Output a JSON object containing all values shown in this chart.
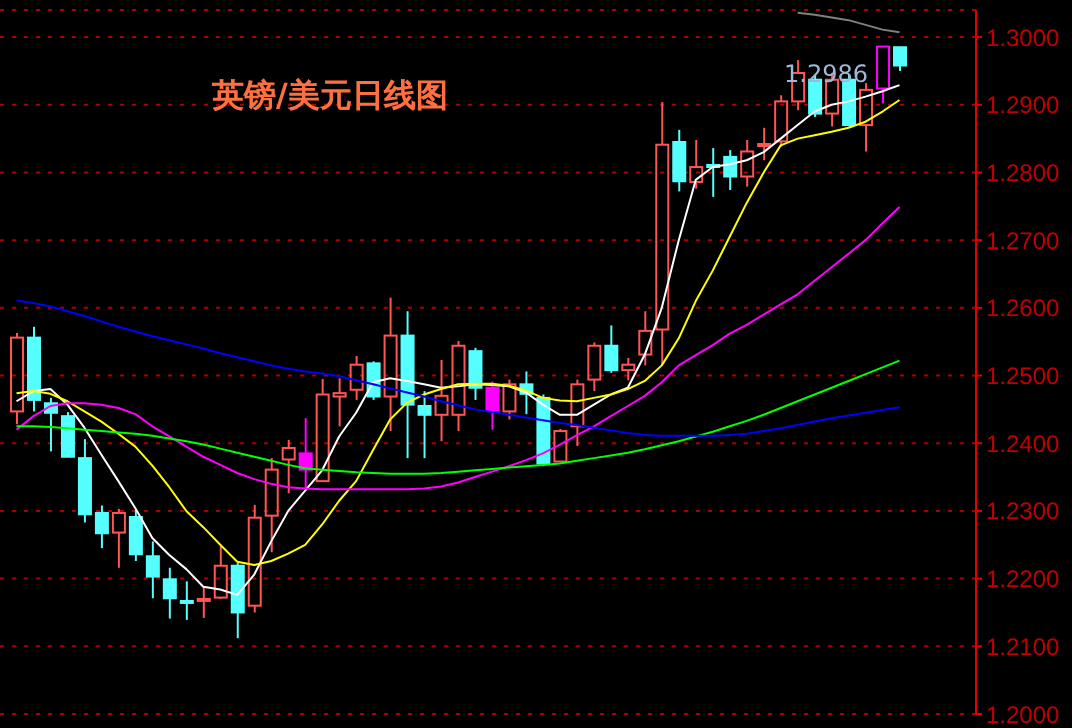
{
  "chart_data": {
    "type": "candlestick",
    "title": "英镑/美元日线图",
    "categories": [
      null,
      null,
      null,
      null,
      null,
      null,
      null,
      null,
      null,
      null,
      null,
      null,
      null,
      null,
      null,
      null,
      null,
      null,
      null,
      null,
      null,
      null,
      null,
      null,
      null,
      null,
      null,
      null,
      null,
      null,
      null,
      null,
      null,
      null,
      null,
      null,
      null,
      null,
      null,
      null,
      null,
      null,
      null,
      null,
      null,
      null,
      null,
      null,
      null,
      null,
      null,
      null,
      null
    ],
    "ohlc": [
      [
        1.2447,
        1.2563,
        1.2428,
        1.2556
      ],
      [
        1.2556,
        1.2572,
        1.2447,
        1.2464
      ],
      [
        1.2459,
        1.2467,
        1.2388,
        1.2445
      ],
      [
        1.244,
        1.2446,
        1.238,
        1.238
      ],
      [
        1.2378,
        1.2406,
        1.2283,
        1.2295
      ],
      [
        1.2297,
        1.2308,
        1.2245,
        1.2267
      ],
      [
        1.2268,
        1.2303,
        1.2216,
        1.2297
      ],
      [
        1.2291,
        1.2303,
        1.2226,
        1.2236
      ],
      [
        1.2233,
        1.2255,
        1.2171,
        1.2203
      ],
      [
        1.2199,
        1.2216,
        1.2141,
        1.2171
      ],
      [
        1.2167,
        1.2196,
        1.2139,
        1.2166
      ],
      [
        1.2168,
        1.2187,
        1.2142,
        1.217
      ],
      [
        1.2172,
        1.225,
        1.217,
        1.2219
      ],
      [
        1.2219,
        1.2223,
        1.2112,
        1.215
      ],
      [
        1.216,
        1.2309,
        1.215,
        1.229
      ],
      [
        1.2293,
        1.2378,
        1.2239,
        1.2361
      ],
      [
        1.2376,
        1.2405,
        1.2326,
        1.2393
      ],
      [
        1.2385,
        1.2437,
        1.2334,
        1.2361
      ],
      [
        1.2344,
        1.2495,
        1.2344,
        1.2472
      ],
      [
        1.2469,
        1.2496,
        1.2425,
        1.2474
      ],
      [
        1.2479,
        1.2529,
        1.2464,
        1.2516
      ],
      [
        1.2518,
        1.2521,
        1.2464,
        1.2469
      ],
      [
        1.2469,
        1.2615,
        1.2418,
        1.2559
      ],
      [
        1.2559,
        1.2595,
        1.2378,
        1.2457
      ],
      [
        1.2455,
        1.2477,
        1.2378,
        1.2442
      ],
      [
        1.2442,
        1.2523,
        1.2403,
        1.247
      ],
      [
        1.2442,
        1.2551,
        1.2418,
        1.2544
      ],
      [
        1.2536,
        1.2541,
        1.2464,
        1.2482
      ],
      [
        1.2482,
        1.2491,
        1.242,
        1.2449
      ],
      [
        1.2447,
        1.2494,
        1.2435,
        1.2487
      ],
      [
        1.2487,
        1.2506,
        1.2443,
        1.2473
      ],
      [
        1.2467,
        1.2472,
        1.2366,
        1.237
      ],
      [
        1.2373,
        1.2421,
        1.2373,
        1.2418
      ],
      [
        1.2425,
        1.2494,
        1.2396,
        1.2487
      ],
      [
        1.2494,
        1.2549,
        1.2477,
        1.2544
      ],
      [
        1.2544,
        1.2574,
        1.2504,
        1.2508
      ],
      [
        1.2508,
        1.2526,
        1.2493,
        1.2516
      ],
      [
        1.2531,
        1.2595,
        1.2515,
        1.2566
      ],
      [
        1.2568,
        1.2904,
        1.2517,
        1.2841
      ],
      [
        1.2845,
        1.2863,
        1.2772,
        1.2787
      ],
      [
        1.2786,
        1.2848,
        1.2776,
        1.2808
      ],
      [
        1.2811,
        1.2836,
        1.2764,
        1.281
      ],
      [
        1.2823,
        1.2833,
        1.2774,
        1.2794
      ],
      [
        1.2794,
        1.2848,
        1.2779,
        1.2831
      ],
      [
        1.284,
        1.2866,
        1.2818,
        1.2842
      ],
      [
        1.2846,
        1.2914,
        1.2838,
        1.2905
      ],
      [
        1.2905,
        1.2966,
        1.2892,
        1.2947
      ],
      [
        1.2937,
        1.2944,
        1.2882,
        1.2887
      ],
      [
        1.2887,
        1.2947,
        1.2868,
        1.2937
      ],
      [
        1.2937,
        1.2944,
        1.2868,
        1.287
      ],
      [
        1.287,
        1.2932,
        1.2831,
        1.2922
      ],
      [
        1.2924,
        1.2986,
        1.2902,
        1.2986
      ],
      [
        1.2985,
        1.2985,
        1.295,
        1.2958
      ]
    ],
    "colors": [
      "#ff5555",
      "#55ffff",
      "#55ffff",
      "#55ffff",
      "#55ffff",
      "#55ffff",
      "#ff5555",
      "#55ffff",
      "#55ffff",
      "#55ffff",
      "#55ffff",
      "#ff5555",
      "#ff5555",
      "#55ffff",
      "#ff5555",
      "#ff5555",
      "#ff5555",
      "#ff00ff",
      "#ff5555",
      "#ff5555",
      "#ff5555",
      "#55ffff",
      "#ff5555",
      "#55ffff",
      "#55ffff",
      "#ff5555",
      "#ff5555",
      "#55ffff",
      "#ff00ff",
      "#ff5555",
      "#55ffff",
      "#55ffff",
      "#ff5555",
      "#ff5555",
      "#ff5555",
      "#55ffff",
      "#ff5555",
      "#ff5555",
      "#ff5555",
      "#55ffff",
      "#ff5555",
      "#55ffff",
      "#55ffff",
      "#ff5555",
      "#ff5555",
      "#ff5555",
      "#ff5555",
      "#55ffff",
      "#ff5555",
      "#55ffff",
      "#ff5555",
      "#ff00ff",
      "#55ffff"
    ],
    "series": [
      {
        "type": "line",
        "color": "#ffffff",
        "values": [
          1.2462,
          1.2477,
          1.248,
          1.2457,
          1.2423,
          1.2383,
          1.2344,
          1.2304,
          1.226,
          1.2235,
          1.2214,
          1.2188,
          1.2184,
          1.2176,
          1.2206,
          1.2255,
          1.23,
          1.233,
          1.236,
          1.241,
          1.2445,
          1.249,
          1.2496,
          1.2492,
          1.2487,
          1.2482,
          1.2484,
          1.2487,
          1.2486,
          1.2484,
          1.2475,
          1.2457,
          1.2442,
          1.2442,
          1.2457,
          1.2472,
          1.2482,
          1.2531,
          1.26,
          1.27,
          1.2789,
          1.2808,
          1.2812,
          1.2818,
          1.283,
          1.285,
          1.287,
          1.289,
          1.29,
          1.2905,
          1.2912,
          1.292,
          1.2929
        ]
      },
      {
        "type": "line",
        "color": "#ffff00",
        "values": [
          1.2474,
          1.2477,
          1.2473,
          1.2462,
          1.2447,
          1.2432,
          1.2414,
          1.2395,
          1.2367,
          1.2335,
          1.23,
          1.2276,
          1.225,
          1.2225,
          1.222,
          1.2226,
          1.2237,
          1.225,
          1.228,
          1.2315,
          1.2344,
          1.239,
          1.2435,
          1.246,
          1.2472,
          1.248,
          1.2487,
          1.2488,
          1.2488,
          1.2485,
          1.2478,
          1.2467,
          1.2463,
          1.2462,
          1.2467,
          1.2472,
          1.248,
          1.2492,
          1.2515,
          1.2555,
          1.261,
          1.2655,
          1.2705,
          1.2755,
          1.28,
          1.284,
          1.285,
          1.2855,
          1.286,
          1.2866,
          1.2875,
          1.289,
          1.2907
        ]
      },
      {
        "type": "line",
        "color": "#ff00ff",
        "values": [
          1.242,
          1.244,
          1.2455,
          1.2459,
          1.2459,
          1.2457,
          1.2452,
          1.2443,
          1.2425,
          1.241,
          1.2395,
          1.238,
          1.2368,
          1.2356,
          1.2347,
          1.234,
          1.2335,
          1.2333,
          1.2332,
          1.2332,
          1.2332,
          1.2332,
          1.2332,
          1.2332,
          1.2333,
          1.2336,
          1.2342,
          1.235,
          1.2358,
          1.2366,
          1.2375,
          1.2385,
          1.2398,
          1.2412,
          1.2425,
          1.244,
          1.2455,
          1.247,
          1.249,
          1.2515,
          1.253,
          1.2545,
          1.2562,
          1.2575,
          1.259,
          1.2605,
          1.262,
          1.264,
          1.266,
          1.268,
          1.27,
          1.2725,
          1.2749
        ]
      },
      {
        "type": "line",
        "color": "#00ff00",
        "values": [
          1.2425,
          1.2425,
          1.2424,
          1.2422,
          1.242,
          1.2418,
          1.2416,
          1.2414,
          1.2411,
          1.2407,
          1.2403,
          1.2398,
          1.2392,
          1.2386,
          1.238,
          1.2374,
          1.2368,
          1.2363,
          1.2361,
          1.2359,
          1.2357,
          1.2356,
          1.2355,
          1.2355,
          1.2355,
          1.2356,
          1.2358,
          1.236,
          1.2362,
          1.2364,
          1.2366,
          1.2368,
          1.237,
          1.2374,
          1.2378,
          1.2382,
          1.2386,
          1.2391,
          1.2397,
          1.2403,
          1.241,
          1.2417,
          1.2425,
          1.2433,
          1.2442,
          1.2452,
          1.2462,
          1.2472,
          1.2482,
          1.2492,
          1.2502,
          1.2512,
          1.2522
        ]
      },
      {
        "type": "line",
        "color": "#0000ff",
        "values": [
          1.2611,
          1.2607,
          1.2602,
          1.2595,
          1.2588,
          1.258,
          1.2572,
          1.2565,
          1.2558,
          1.2552,
          1.2546,
          1.254,
          1.2533,
          1.2527,
          1.2521,
          1.2515,
          1.251,
          1.2506,
          1.2503,
          1.2499,
          1.2493,
          1.2487,
          1.2481,
          1.2475,
          1.2469,
          1.2462,
          1.2456,
          1.245,
          1.2446,
          1.2442,
          1.2438,
          1.2434,
          1.243,
          1.2427,
          1.2423,
          1.2419,
          1.2415,
          1.2412,
          1.2411,
          1.2411,
          1.2411,
          1.2411,
          1.2412,
          1.2414,
          1.2418,
          1.2422,
          1.2427,
          1.2432,
          1.2437,
          1.2441,
          1.2445,
          1.2449,
          1.2453
        ]
      },
      {
        "type": "line",
        "color": "#808080",
        "values": [
          null,
          null,
          null,
          null,
          null,
          null,
          null,
          null,
          null,
          null,
          null,
          null,
          null,
          null,
          null,
          null,
          null,
          null,
          null,
          null,
          null,
          null,
          null,
          null,
          null,
          null,
          null,
          null,
          null,
          null,
          null,
          null,
          null,
          null,
          null,
          null,
          null,
          null,
          null,
          null,
          null,
          null,
          null,
          null,
          null,
          null,
          1.3036,
          1.3033,
          1.3029,
          1.3025,
          1.3018,
          1.3011,
          1.3007
        ]
      }
    ],
    "annotations": [
      "1.2986"
    ],
    "ylim": [
      1.2,
      1.304
    ],
    "yticks": [
      {
        "value": 1.2,
        "label": "1.2000"
      },
      {
        "value": 1.21,
        "label": "1.2100"
      },
      {
        "value": 1.22,
        "label": "1.2200"
      },
      {
        "value": 1.23,
        "label": "1.2300"
      },
      {
        "value": 1.24,
        "label": "1.2400"
      },
      {
        "value": 1.25,
        "label": "1.2500"
      },
      {
        "value": 1.26,
        "label": "1.2600"
      },
      {
        "value": 1.27,
        "label": "1.2700"
      },
      {
        "value": 1.28,
        "label": "1.2800"
      },
      {
        "value": 1.29,
        "label": "1.2900"
      },
      {
        "value": 1.3,
        "label": "1.3000"
      }
    ],
    "grid": "y",
    "tick_labels": "y"
  }
}
